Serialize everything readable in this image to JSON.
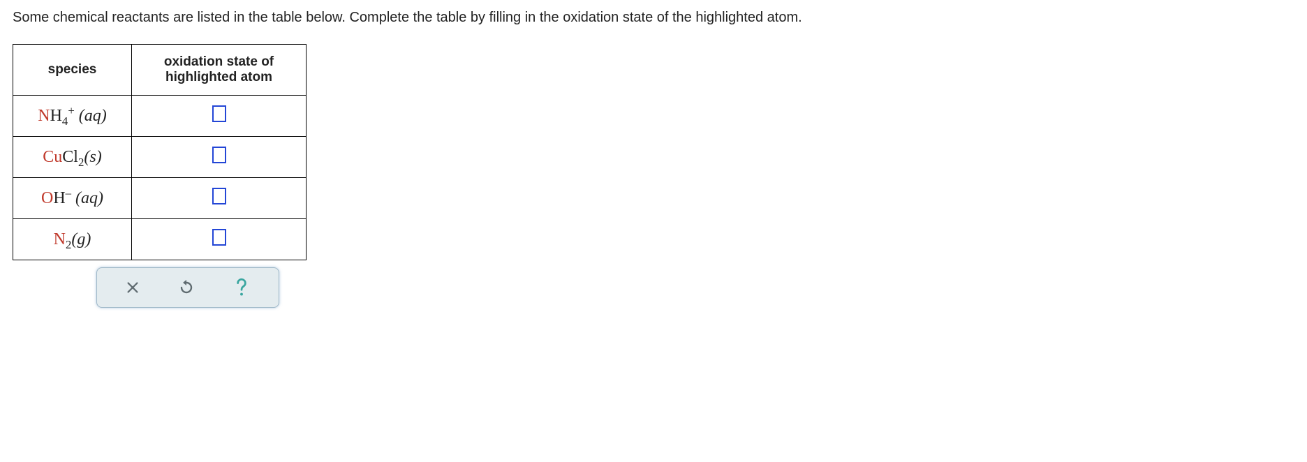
{
  "prompt": "Some chemical reactants are listed in the table below. Complete the table by filling in the oxidation state of the highlighted atom.",
  "table": {
    "headers": {
      "species": "species",
      "oxstate": "oxidation state of highlighted atom"
    },
    "rows": [
      {
        "highlighted_element": "N",
        "rest_formula_html": "H<sub>4</sub><sup>+</sup>",
        "state_label": "(aq)"
      },
      {
        "highlighted_element": "Cu",
        "rest_formula_html": "Cl<sub>2</sub>",
        "state_label": "(s)"
      },
      {
        "highlighted_element": "O",
        "rest_formula_html": "H<sup>&#8211;</sup>",
        "state_label": "(aq)"
      },
      {
        "highlighted_element": "N",
        "rest_formula_html": "<sub>2</sub>",
        "state_label": "(g)"
      }
    ]
  },
  "colors": {
    "highlight": "#c0392b",
    "input_border": "#2346d6",
    "toolbar_bg": "#e4ecef",
    "toolbar_border": "#9fb8c8",
    "icon_gray": "#5f6b70",
    "icon_teal": "#3aa6a0"
  },
  "toolbar": {
    "clear": "clear",
    "undo": "undo",
    "help": "help"
  }
}
